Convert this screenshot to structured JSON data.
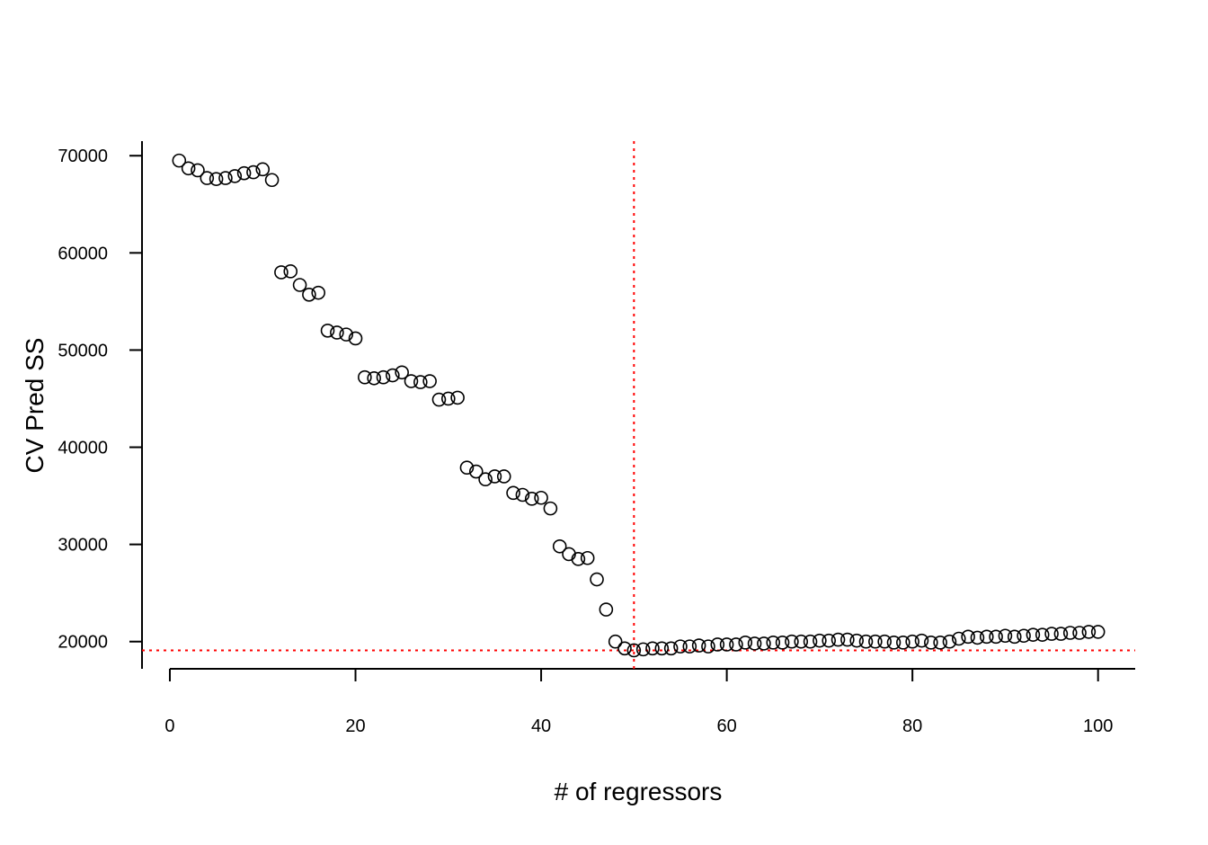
{
  "chart_data": {
    "type": "scatter",
    "title": "",
    "xlabel": "# of regressors",
    "ylabel": "CV Pred SS",
    "xlim": [
      -3,
      104
    ],
    "ylim": [
      17200,
      71500
    ],
    "x_ticks": [
      0,
      20,
      40,
      60,
      80,
      100
    ],
    "y_ticks": [
      20000,
      30000,
      40000,
      50000,
      60000,
      70000
    ],
    "x_tick_labels": [
      "0",
      "20",
      "40",
      "60",
      "80",
      "100"
    ],
    "y_tick_labels": [
      "20000",
      "30000",
      "40000",
      "50000",
      "60000",
      "70000"
    ],
    "grid": false,
    "marker": "open-circle",
    "reference_lines": {
      "vertical_x": 50,
      "horizontal_y": 19100,
      "color": "#ff0000",
      "style": "dotted"
    },
    "series": [
      {
        "x": [
          1,
          2,
          3,
          4,
          5,
          6,
          7,
          8,
          9,
          10,
          11,
          12,
          13,
          14,
          15,
          16,
          17,
          18,
          19,
          20,
          21,
          22,
          23,
          24,
          25,
          26,
          27,
          28,
          29,
          30,
          31,
          32,
          33,
          34,
          35,
          36,
          37,
          38,
          39,
          40,
          41,
          42,
          43,
          44,
          45,
          46,
          47,
          48,
          49,
          50,
          51,
          52,
          53,
          54,
          55,
          56,
          57,
          58,
          59,
          60,
          61,
          62,
          63,
          64,
          65,
          66,
          67,
          68,
          69,
          70,
          71,
          72,
          73,
          74,
          75,
          76,
          77,
          78,
          79,
          80,
          81,
          82,
          83,
          84,
          85,
          86,
          87,
          88,
          89,
          90,
          91,
          92,
          93,
          94,
          95,
          96,
          97,
          98,
          99,
          100
        ],
        "y": [
          69500,
          68700,
          68500,
          67700,
          67600,
          67700,
          67900,
          68200,
          68300,
          68600,
          67500,
          58000,
          58100,
          56700,
          55700,
          55900,
          52000,
          51800,
          51600,
          51200,
          47200,
          47100,
          47200,
          47400,
          47700,
          46800,
          46700,
          46800,
          44900,
          45000,
          45100,
          37900,
          37500,
          36700,
          37000,
          37000,
          35300,
          35100,
          34700,
          34800,
          33700,
          29800,
          29000,
          28500,
          28600,
          26400,
          23300,
          20000,
          19300,
          19100,
          19200,
          19300,
          19300,
          19300,
          19500,
          19500,
          19600,
          19500,
          19700,
          19700,
          19700,
          19900,
          19800,
          19800,
          19900,
          19900,
          20000,
          20000,
          20000,
          20100,
          20100,
          20200,
          20200,
          20100,
          20000,
          20000,
          20000,
          19900,
          19900,
          20000,
          20100,
          19900,
          19900,
          20000,
          20300,
          20500,
          20400,
          20500,
          20500,
          20600,
          20500,
          20600,
          20700,
          20700,
          20800,
          20800,
          20900,
          20900,
          21000,
          21000
        ]
      }
    ],
    "colors": {
      "points": "#000000",
      "axes": "#000000",
      "reference": "#ff0000"
    }
  }
}
